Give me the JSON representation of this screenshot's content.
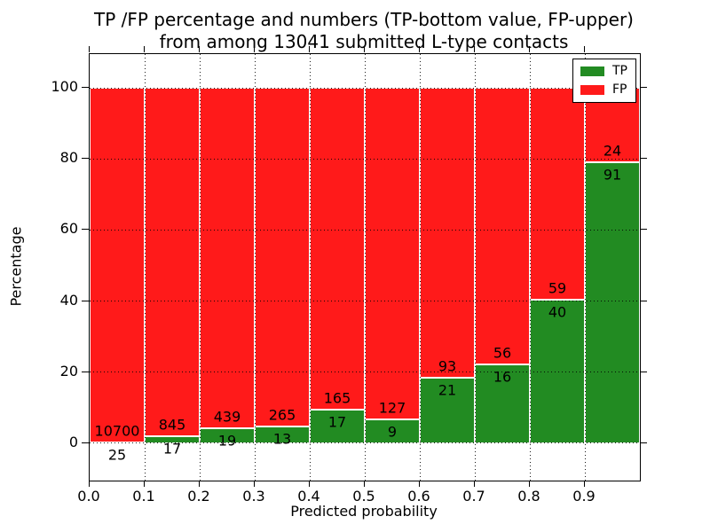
{
  "figure": {
    "title_line1": "TP /FP percentage and numbers (TP-bottom value, FP-upper)",
    "title_line2": "from among 13041 submitted L-type contacts"
  },
  "chart_data": {
    "type": "bar",
    "stacked": true,
    "normalized": "each bin stacked to 100%",
    "title": "TP /FP percentage and numbers (TP-bottom value, FP-upper) from among 13041 submitted L-type contacts",
    "xlabel": "Predicted probability",
    "ylabel": "Percentage",
    "total_contacts": 13041,
    "bin_edges": [
      0.0,
      0.1,
      0.2,
      0.3,
      0.4,
      0.5,
      0.6,
      0.7,
      0.8,
      0.9,
      1.0
    ],
    "xtick_labels": [
      "0.0",
      "0.1",
      "0.2",
      "0.3",
      "0.4",
      "0.5",
      "0.6",
      "0.7",
      "0.8",
      "0.9"
    ],
    "ytick_values": [
      0,
      20,
      40,
      60,
      80,
      100
    ],
    "ylim": [
      -10.5,
      109.5
    ],
    "xlim": [
      0.0,
      1.0
    ],
    "grid": "dotted",
    "series": [
      {
        "name": "TP",
        "color": "#228b22",
        "counts": [
          25,
          17,
          19,
          13,
          17,
          9,
          21,
          16,
          40,
          91
        ]
      },
      {
        "name": "FP",
        "color": "#ff1a1a",
        "counts": [
          10700,
          845,
          439,
          265,
          165,
          127,
          93,
          56,
          59,
          24
        ]
      }
    ],
    "tp_percent_of_bin": [
      0.23,
      1.97,
      4.15,
      4.68,
      9.34,
      6.62,
      18.42,
      22.22,
      40.4,
      79.13
    ],
    "legend": {
      "position": "upper right",
      "entries": [
        {
          "label": "TP",
          "color": "#228b22"
        },
        {
          "label": "FP",
          "color": "#ff1a1a"
        }
      ]
    }
  }
}
